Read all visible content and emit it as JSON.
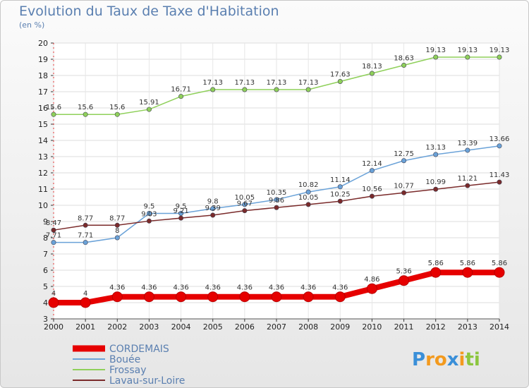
{
  "chart_data": {
    "type": "line",
    "title": "Evolution du Taux de Taxe d'Habitation",
    "subtitle": "(en %)",
    "x": [
      2000,
      2001,
      2002,
      2003,
      2004,
      2005,
      2006,
      2007,
      2008,
      2009,
      2010,
      2011,
      2012,
      2013,
      2014
    ],
    "ylim": [
      3,
      20
    ],
    "yticks": [
      3,
      4,
      5,
      6,
      7,
      8,
      9,
      10,
      11,
      12,
      13,
      14,
      15,
      16,
      17,
      18,
      19,
      20
    ],
    "grid": true,
    "legend_position": "bottom-left",
    "series": [
      {
        "name": "CORDEMAIS",
        "color": "#e60000",
        "thick": true,
        "values": [
          4,
          4,
          4.36,
          4.36,
          4.36,
          4.36,
          4.36,
          4.36,
          4.36,
          4.36,
          4.86,
          5.36,
          5.86,
          5.86,
          5.86
        ],
        "labels": [
          "4",
          "4",
          "4.36",
          "4.36",
          "4.36",
          "4.36",
          "4.36",
          "4.36",
          "4.36",
          "4.36",
          "4.86",
          "5.36",
          "5.86",
          "5.86",
          "5.86"
        ]
      },
      {
        "name": "Bouée",
        "color": "#6aa2d8",
        "thick": false,
        "values": [
          7.71,
          7.71,
          8,
          9.5,
          9.5,
          9.8,
          10.05,
          10.35,
          10.82,
          11.14,
          12.14,
          12.75,
          13.13,
          13.39,
          13.66
        ],
        "labels": [
          "7.71",
          "7.71",
          "8",
          "9.5",
          "9.5",
          "9.8",
          "10.05",
          "10.35",
          "10.82",
          "11.14",
          "12.14",
          "12.75",
          "13.13",
          "13.39",
          "13.66"
        ]
      },
      {
        "name": "Frossay",
        "color": "#8fd05a",
        "thick": false,
        "values": [
          15.6,
          15.6,
          15.6,
          15.91,
          16.71,
          17.13,
          17.13,
          17.13,
          17.13,
          17.63,
          18.13,
          18.63,
          19.13,
          19.13,
          19.13
        ],
        "labels": [
          "15.6",
          "15.6",
          "15.6",
          "15.91",
          "16.71",
          "17.13",
          "17.13",
          "17.13",
          "17.13",
          "17.63",
          "18.13",
          "18.63",
          "19.13",
          "19.13",
          "19.13"
        ]
      },
      {
        "name": "Lavau-sur-Loire",
        "color": "#7a2a2a",
        "thick": false,
        "values": [
          8.47,
          8.77,
          8.77,
          9.03,
          9.21,
          9.39,
          9.67,
          9.86,
          10.05,
          10.25,
          10.56,
          10.77,
          10.99,
          11.21,
          11.43
        ],
        "labels": [
          "8.47",
          "8.77",
          "8.77",
          "9.03",
          "9.21",
          "9.39",
          "9.67",
          "9.86",
          "10.05",
          "10.25",
          "10.56",
          "10.77",
          "10.99",
          "11.21",
          "11.43"
        ]
      }
    ]
  },
  "logo": {
    "letters": [
      "P",
      "r",
      "o",
      "x",
      "i",
      "t",
      "i"
    ],
    "colors": [
      "#3a8fd8",
      "#f39a1e",
      "#f39a1e",
      "#3a8fd8",
      "#f39a1e",
      "#8cc63f",
      "#8cc63f"
    ]
  }
}
